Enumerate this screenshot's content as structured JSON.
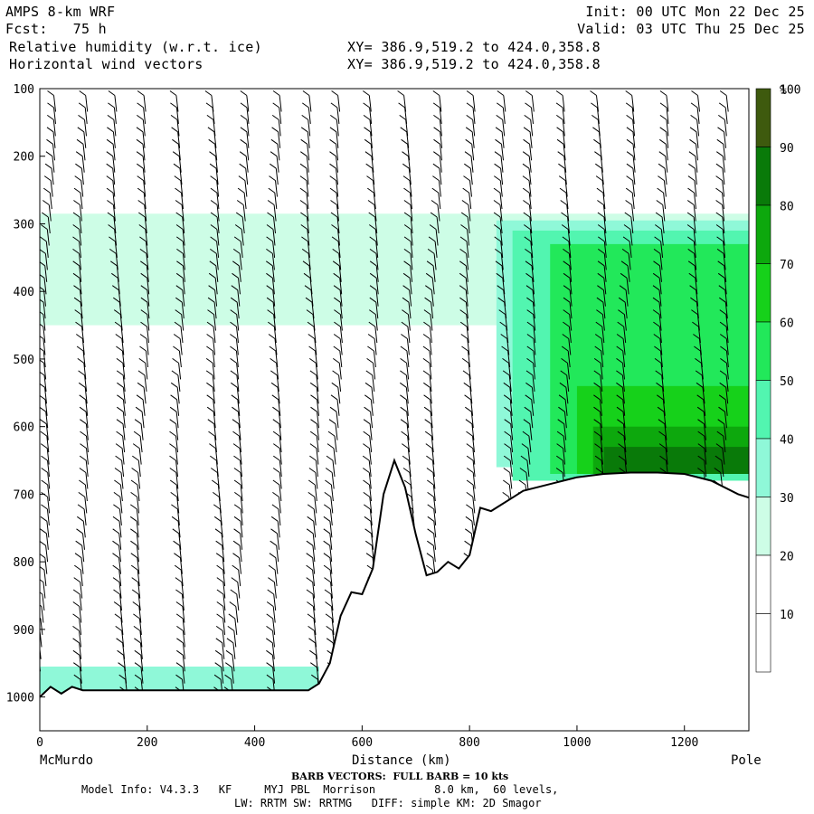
{
  "header": {
    "title": "AMPS 8-km WRF",
    "forecast": "Fcst:   75 h",
    "field1": "Relative humidity (w.r.t. ice)",
    "field2": "Horizontal wind vectors",
    "init": "Init: 00 UTC Mon 22 Dec 25",
    "valid": "Valid: 03 UTC Thu 25 Dec 25",
    "xy1": "XY= 386.9,519.2 to 424.0,358.8",
    "xy2": "XY= 386.9,519.2 to 424.0,358.8"
  },
  "footer": {
    "start_label": "McMurdo",
    "end_label": "Pole",
    "barb_note": "BARB VECTORS:  FULL BARB = 10 kts",
    "model_info": "Model Info: V4.3.3   KF     MYJ PBL  Morrison         8.0 km,  60 levels,",
    "model_info2": "LW: RRTM SW: RRTMG   DIFF: simple KM: 2D Smagor"
  },
  "colors": {
    "c30": "#cdfde6",
    "c40": "#8ff8d8",
    "c50": "#52f5b0",
    "c60": "#22e85a",
    "c70": "#16d11a",
    "c80": "#0da80d",
    "c90": "#097a09",
    "c100": "#3e5a0e",
    "terrain": "#000000"
  },
  "chart_data": {
    "type": "heatmap",
    "title": "Relative humidity (w.r.t. ice)",
    "xlabel": "Distance (km)",
    "ylabel": "",
    "xlim": [
      0,
      1320
    ],
    "ylim": [
      1050,
      100
    ],
    "x_ticks": [
      0,
      200,
      400,
      600,
      800,
      1000,
      1200
    ],
    "y_ticks": [
      100,
      200,
      300,
      400,
      500,
      600,
      700,
      800,
      900,
      1000
    ],
    "colorbar": {
      "unit": "%",
      "levels": [
        10,
        20,
        30,
        40,
        50,
        60,
        70,
        80,
        90,
        100
      ]
    },
    "terrain_profile": {
      "x": [
        0,
        20,
        40,
        60,
        80,
        100,
        200,
        300,
        400,
        500,
        520,
        540,
        560,
        580,
        600,
        620,
        640,
        660,
        680,
        700,
        720,
        740,
        760,
        780,
        800,
        820,
        840,
        860,
        880,
        900,
        950,
        1000,
        1050,
        1100,
        1150,
        1200,
        1250,
        1300,
        1320
      ],
      "p": [
        1000,
        985,
        995,
        985,
        990,
        990,
        990,
        990,
        990,
        990,
        980,
        950,
        880,
        845,
        848,
        810,
        700,
        650,
        690,
        760,
        820,
        815,
        800,
        810,
        790,
        720,
        725,
        715,
        705,
        695,
        685,
        675,
        670,
        668,
        668,
        670,
        680,
        700,
        705
      ]
    },
    "rh_regions": [
      {
        "level": 30,
        "x": [
          0,
          1320
        ],
        "p": [
          285,
          450
        ]
      },
      {
        "level": 40,
        "x": [
          850,
          1320
        ],
        "p": [
          295,
          660
        ]
      },
      {
        "level": 50,
        "x": [
          880,
          1320
        ],
        "p": [
          310,
          680
        ]
      },
      {
        "level": 60,
        "x": [
          950,
          1320
        ],
        "p": [
          330,
          670
        ]
      },
      {
        "level": 70,
        "x": [
          1000,
          1320
        ],
        "p": [
          540,
          670
        ]
      },
      {
        "level": 80,
        "x": [
          1030,
          1320
        ],
        "p": [
          600,
          670
        ]
      },
      {
        "level": 90,
        "x": [
          1050,
          1320
        ],
        "p": [
          630,
          670
        ]
      },
      {
        "level": 40,
        "x": [
          0,
          520
        ],
        "p": [
          955,
          995
        ]
      }
    ]
  }
}
